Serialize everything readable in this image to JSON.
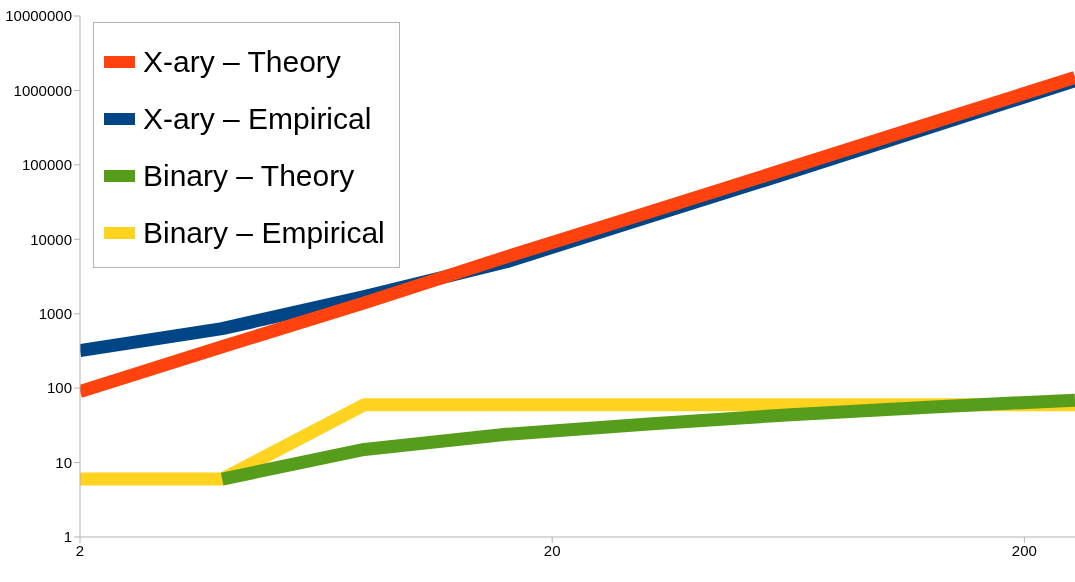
{
  "chart_data": {
    "type": "line",
    "x": [
      2,
      4,
      8,
      16,
      32,
      64,
      128,
      256
    ],
    "series": [
      {
        "name": "X-ary – Theory",
        "color": "#ff420e",
        "values": [
          90,
          360,
          1400,
          5800,
          23000,
          92000,
          370000,
          1500000
        ]
      },
      {
        "name": "X-ary – Empirical",
        "color": "#004586",
        "values": [
          320,
          630,
          1700,
          5000,
          20000,
          80000,
          330000,
          1350000
        ]
      },
      {
        "name": "Binary – Theory",
        "color": "#579d1c",
        "values": [
          null,
          6,
          15,
          24,
          33,
          44,
          56,
          69
        ]
      },
      {
        "name": "Binary – Empirical",
        "color": "#ffd320",
        "values": [
          6,
          6,
          60,
          60,
          60,
          60,
          60,
          60
        ]
      }
    ],
    "log": "xy",
    "xlim": [
      2,
      256
    ],
    "xticks": [
      2,
      20,
      200
    ],
    "ylim": [
      1,
      10000000
    ],
    "yticks": [
      1,
      10,
      100,
      1000,
      10000,
      100000,
      1000000,
      10000000
    ],
    "legend": "top left",
    "marker": "none",
    "line_style": "solid",
    "grid": false
  }
}
